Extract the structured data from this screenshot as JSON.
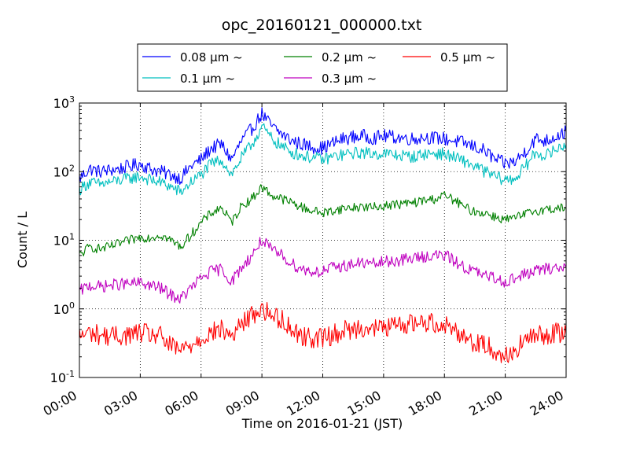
{
  "chart_data": {
    "type": "line",
    "title": "opc_20160121_000000.txt",
    "xlabel": "Time on 2016-01-21 (JST)",
    "ylabel": "Count / L",
    "x_unit": "hours",
    "xlim": [
      0,
      24
    ],
    "ylim": [
      0.1,
      1000
    ],
    "yscale": "log",
    "grid": true,
    "legend_position": "top-center",
    "xticks": [
      "00:00",
      "03:00",
      "06:00",
      "09:00",
      "12:00",
      "15:00",
      "18:00",
      "21:00",
      "24:00"
    ],
    "yticks": [
      {
        "value": 0.1,
        "base": "10",
        "exp": "-1"
      },
      {
        "value": 1,
        "base": "10",
        "exp": "0"
      },
      {
        "value": 10,
        "base": "10",
        "exp": "1"
      },
      {
        "value": 100,
        "base": "10",
        "exp": "2"
      },
      {
        "value": 1000,
        "base": "10",
        "exp": "3"
      }
    ],
    "series": [
      {
        "name": "0.08 μm ~",
        "color": "#0000ff",
        "x": [
          0,
          0.5,
          1,
          1.5,
          2,
          2.5,
          3,
          3.5,
          4,
          4.5,
          5,
          5.5,
          6,
          6.5,
          7,
          7.5,
          8,
          8.5,
          9,
          9.5,
          10,
          10.5,
          11,
          11.5,
          12,
          12.5,
          13,
          13.5,
          14,
          14.5,
          15,
          15.5,
          16,
          16.5,
          17,
          17.5,
          18,
          18.5,
          19,
          19.5,
          20,
          20.5,
          21,
          21.5,
          22,
          22.5,
          23,
          23.5,
          24
        ],
        "y": [
          80,
          110,
          100,
          105,
          110,
          120,
          130,
          110,
          100,
          90,
          80,
          120,
          150,
          220,
          250,
          150,
          280,
          420,
          700,
          450,
          350,
          280,
          250,
          230,
          220,
          260,
          300,
          320,
          330,
          310,
          330,
          320,
          310,
          300,
          320,
          310,
          300,
          280,
          260,
          230,
          200,
          150,
          130,
          140,
          200,
          300,
          280,
          330,
          380
        ]
      },
      {
        "name": "0.1 μm ~",
        "color": "#00bfbf",
        "x": [
          0,
          0.5,
          1,
          1.5,
          2,
          2.5,
          3,
          3.5,
          4,
          4.5,
          5,
          5.5,
          6,
          6.5,
          7,
          7.5,
          8,
          8.5,
          9,
          9.5,
          10,
          10.5,
          11,
          11.5,
          12,
          12.5,
          13,
          13.5,
          14,
          14.5,
          15,
          15.5,
          16,
          16.5,
          17,
          17.5,
          18,
          18.5,
          19,
          19.5,
          20,
          20.5,
          21,
          21.5,
          22,
          22.5,
          23,
          23.5,
          24
        ],
        "y": [
          55,
          70,
          65,
          70,
          75,
          80,
          85,
          75,
          70,
          60,
          50,
          70,
          90,
          130,
          150,
          90,
          160,
          250,
          450,
          300,
          230,
          190,
          170,
          160,
          150,
          165,
          175,
          185,
          190,
          180,
          185,
          175,
          170,
          165,
          180,
          185,
          180,
          160,
          140,
          120,
          100,
          85,
          75,
          80,
          120,
          190,
          170,
          210,
          250
        ]
      },
      {
        "name": "0.2 μm ~",
        "color": "#008000",
        "x": [
          0,
          0.5,
          1,
          1.5,
          2,
          2.5,
          3,
          3.5,
          4,
          4.5,
          5,
          5.5,
          6,
          6.5,
          7,
          7.5,
          8,
          8.5,
          9,
          9.5,
          10,
          10.5,
          11,
          11.5,
          12,
          12.5,
          13,
          13.5,
          14,
          14.5,
          15,
          15.5,
          16,
          16.5,
          17,
          17.5,
          18,
          18.5,
          19,
          19.5,
          20,
          20.5,
          21,
          21.5,
          22,
          22.5,
          23,
          23.5,
          24
        ],
        "y": [
          6,
          8,
          7.5,
          8,
          9,
          10,
          11,
          11,
          12,
          10,
          8,
          12,
          18,
          25,
          30,
          18,
          32,
          40,
          60,
          45,
          40,
          35,
          30,
          27,
          25,
          27,
          29,
          30,
          31,
          30,
          32,
          33,
          34,
          35,
          38,
          40,
          45,
          38,
          30,
          26,
          25,
          22,
          20,
          21,
          24,
          27,
          28,
          29,
          30
        ]
      },
      {
        "name": "0.3 μm ~",
        "color": "#bf00bf",
        "x": [
          0,
          0.5,
          1,
          1.5,
          2,
          2.5,
          3,
          3.5,
          4,
          4.5,
          5,
          5.5,
          6,
          6.5,
          7,
          7.5,
          8,
          8.5,
          9,
          9.5,
          10,
          10.5,
          11,
          11.5,
          12,
          12.5,
          13,
          13.5,
          14,
          14.5,
          15,
          15.5,
          16,
          16.5,
          17,
          17.5,
          18,
          18.5,
          19,
          19.5,
          20,
          20.5,
          21,
          21.5,
          22,
          22.5,
          23,
          23.5,
          24
        ],
        "y": [
          1.8,
          2.2,
          2.1,
          2.2,
          2.3,
          2.3,
          2.4,
          2.2,
          2.0,
          1.6,
          1.4,
          2.0,
          2.8,
          3.5,
          3.8,
          2.5,
          4.0,
          6,
          10,
          7,
          6,
          4.5,
          3.8,
          3.5,
          3.5,
          4,
          4.2,
          4.5,
          4.7,
          4.5,
          4.8,
          5,
          5.2,
          5.5,
          5.8,
          6,
          6,
          5,
          4,
          3.5,
          3,
          2.8,
          2.5,
          2.8,
          3.2,
          3.6,
          3.8,
          4,
          4
        ]
      },
      {
        "name": "0.5 μm ~",
        "color": "#ff0000",
        "x": [
          0,
          0.5,
          1,
          1.5,
          2,
          2.5,
          3,
          3.5,
          4,
          4.5,
          5,
          5.5,
          6,
          6.5,
          7,
          7.5,
          8,
          8.5,
          9,
          9.5,
          10,
          10.5,
          11,
          11.5,
          12,
          12.5,
          13,
          13.5,
          14,
          14.5,
          15,
          15.5,
          16,
          16.5,
          17,
          17.5,
          18,
          18.5,
          19,
          19.5,
          20,
          20.5,
          21,
          21.5,
          22,
          22.5,
          23,
          23.5,
          24
        ],
        "y": [
          0.4,
          0.45,
          0.42,
          0.4,
          0.4,
          0.42,
          0.45,
          0.42,
          0.4,
          0.28,
          0.25,
          0.3,
          0.38,
          0.45,
          0.5,
          0.4,
          0.6,
          0.8,
          1.0,
          0.8,
          0.7,
          0.5,
          0.4,
          0.38,
          0.38,
          0.42,
          0.48,
          0.5,
          0.55,
          0.5,
          0.55,
          0.55,
          0.6,
          0.62,
          0.65,
          0.62,
          0.6,
          0.5,
          0.4,
          0.32,
          0.3,
          0.25,
          0.2,
          0.25,
          0.35,
          0.4,
          0.42,
          0.45,
          0.42
        ]
      }
    ]
  }
}
